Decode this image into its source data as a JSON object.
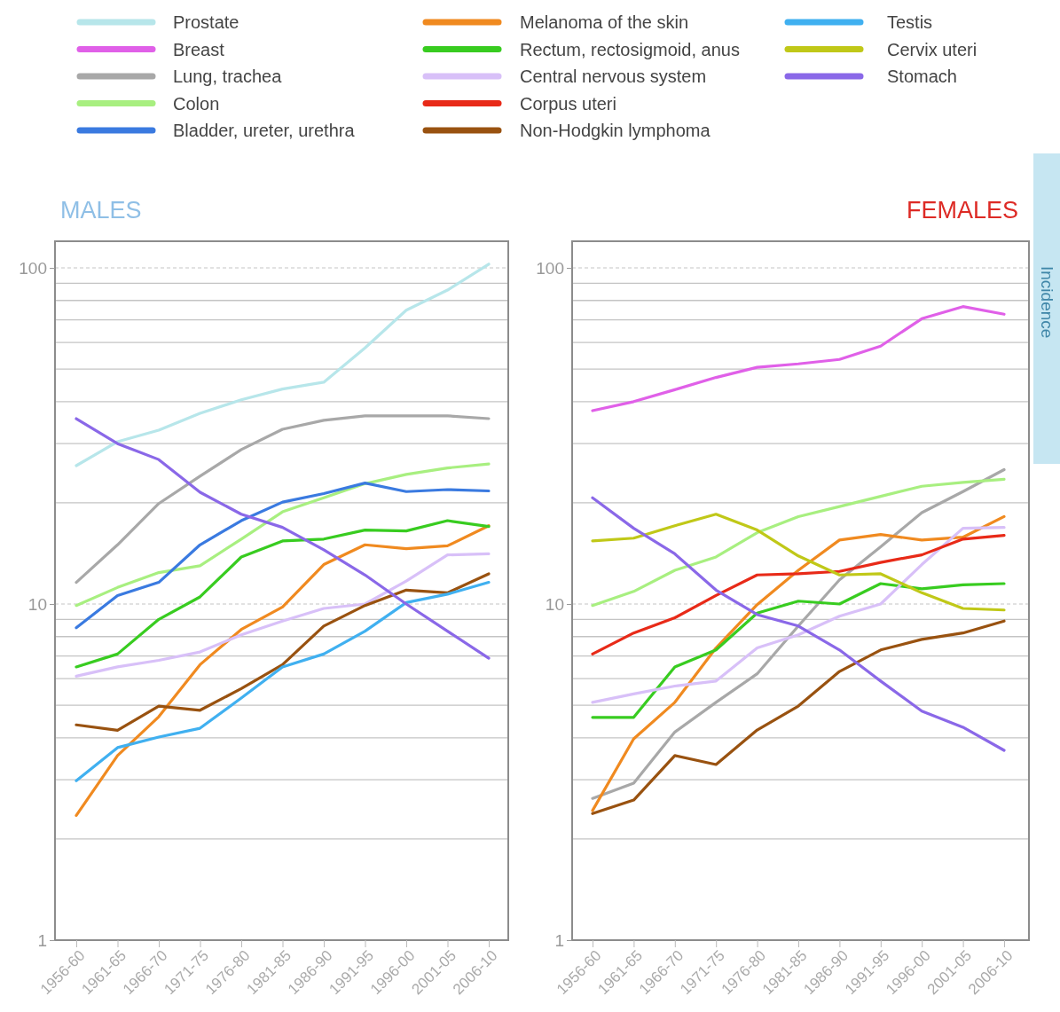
{
  "chart_data": [
    {
      "type": "line",
      "title": "MALES",
      "categories": [
        "1956-60",
        "1961-65",
        "1966-70",
        "1971-75",
        "1976-80",
        "1981-85",
        "1986-90",
        "1991-95",
        "1996-00",
        "2001-05",
        "2006-10"
      ],
      "log": "y",
      "ylim": [
        1,
        120
      ],
      "yticks": [
        1,
        {
          "value": 2,
          "label": null
        },
        {
          "value": 3,
          "label": null
        },
        {
          "value": 4,
          "label": null
        },
        {
          "value": 5,
          "label": null
        },
        {
          "value": 6,
          "label": null
        },
        {
          "value": 7,
          "label": null
        },
        {
          "value": 8,
          "label": null
        },
        {
          "value": 9,
          "label": null
        },
        10,
        {
          "value": 20,
          "label": null
        },
        {
          "value": 30,
          "label": null
        },
        {
          "value": 40,
          "label": null
        },
        {
          "value": 50,
          "label": null
        },
        {
          "value": 60,
          "label": null
        },
        {
          "value": 70,
          "label": null
        },
        {
          "value": 80,
          "label": null
        },
        {
          "value": 90,
          "label": null
        },
        100
      ],
      "grid": "y",
      "legend": "top",
      "marker": "none",
      "line_style": "solid",
      "series": [
        {
          "name": "Prostate",
          "color": "#b7e6ea",
          "values": [
            25.8,
            30.4,
            32.9,
            36.9,
            40.5,
            43.6,
            45.7,
            57.8,
            74.8,
            85.9,
            102.6
          ]
        },
        {
          "name": "Lung, trachea",
          "color": "#a8a8a8",
          "values": [
            11.6,
            15.0,
            19.9,
            24.0,
            28.8,
            33.1,
            35.2,
            36.3,
            36.3,
            36.3,
            35.6
          ]
        },
        {
          "name": "Colon",
          "color": "#a8ef80",
          "values": [
            9.9,
            11.2,
            12.4,
            13.0,
            15.6,
            18.8,
            20.7,
            22.8,
            24.3,
            25.4,
            26.1
          ]
        },
        {
          "name": "Bladder, ureter, urethra",
          "color": "#3a7ae0",
          "values": [
            8.5,
            10.6,
            11.6,
            15.0,
            17.7,
            20.1,
            21.3,
            22.9,
            21.6,
            21.9,
            21.7
          ]
        },
        {
          "name": "Melanoma of the skin",
          "color": "#f08a20",
          "values": [
            2.35,
            3.54,
            4.62,
            6.6,
            8.4,
            9.8,
            13.1,
            15.0,
            14.6,
            14.9,
            17.1
          ]
        },
        {
          "name": "Rectum, rectosigmoid, anus",
          "color": "#38cc20",
          "values": [
            6.5,
            7.1,
            9.0,
            10.5,
            13.8,
            15.4,
            15.6,
            16.6,
            16.5,
            17.7,
            17.0
          ]
        },
        {
          "name": "Central nervous system",
          "color": "#d8c0f8",
          "values": [
            6.1,
            6.5,
            6.8,
            7.2,
            8.1,
            8.9,
            9.7,
            10.0,
            11.7,
            14.0,
            14.1
          ]
        },
        {
          "name": "Non-Hodgkin lymphoma",
          "color": "#995210",
          "values": [
            4.37,
            4.21,
            4.97,
            4.83,
            5.6,
            6.6,
            8.6,
            9.9,
            11.0,
            10.8,
            12.3
          ]
        },
        {
          "name": "Testis",
          "color": "#40b0f0",
          "values": [
            2.98,
            3.74,
            4.02,
            4.27,
            5.25,
            6.5,
            7.1,
            8.3,
            10.1,
            10.7,
            11.6
          ]
        },
        {
          "name": "Stomach",
          "color": "#8a68e8",
          "values": [
            35.6,
            30.0,
            26.9,
            21.5,
            18.5,
            16.9,
            14.5,
            12.2,
            10.0,
            8.3,
            6.9
          ]
        }
      ]
    },
    {
      "type": "line",
      "title": "FEMALES",
      "annotations": [
        "Incidence"
      ],
      "categories": [
        "1956-60",
        "1961-65",
        "1966-70",
        "1971-75",
        "1976-80",
        "1981-85",
        "1986-90",
        "1991-95",
        "1996-00",
        "2001-05",
        "2006-10"
      ],
      "log": "y",
      "ylim": [
        1,
        120
      ],
      "yticks": [
        1,
        {
          "value": 2,
          "label": null
        },
        {
          "value": 3,
          "label": null
        },
        {
          "value": 4,
          "label": null
        },
        {
          "value": 5,
          "label": null
        },
        {
          "value": 6,
          "label": null
        },
        {
          "value": 7,
          "label": null
        },
        {
          "value": 8,
          "label": null
        },
        {
          "value": 9,
          "label": null
        },
        10,
        {
          "value": 20,
          "label": null
        },
        {
          "value": 30,
          "label": null
        },
        {
          "value": 40,
          "label": null
        },
        {
          "value": 50,
          "label": null
        },
        {
          "value": 60,
          "label": null
        },
        {
          "value": 70,
          "label": null
        },
        {
          "value": 80,
          "label": null
        },
        {
          "value": 90,
          "label": null
        },
        100
      ],
      "grid": "y",
      "legend": "top",
      "marker": "none",
      "line_style": "solid",
      "series": [
        {
          "name": "Breast",
          "color": "#e060e8",
          "values": [
            37.6,
            40.0,
            43.4,
            47.2,
            50.6,
            51.8,
            53.4,
            58.5,
            70.6,
            76.7,
            72.8
          ]
        },
        {
          "name": "Lung, trachea",
          "color": "#a8a8a8",
          "values": [
            2.64,
            2.93,
            4.16,
            5.1,
            6.2,
            8.6,
            11.8,
            14.8,
            18.7,
            21.6,
            25.1
          ]
        },
        {
          "name": "Colon",
          "color": "#a8ef80",
          "values": [
            9.9,
            10.9,
            12.6,
            13.8,
            16.3,
            18.2,
            19.5,
            20.9,
            22.4,
            23.0,
            23.5
          ]
        },
        {
          "name": "Melanoma of the skin",
          "color": "#f08a20",
          "values": [
            2.43,
            3.97,
            5.1,
            7.4,
            9.96,
            12.6,
            15.5,
            16.1,
            15.5,
            15.8,
            18.2
          ]
        },
        {
          "name": "Rectum, rectosigmoid, anus",
          "color": "#38cc20",
          "values": [
            4.6,
            4.6,
            6.5,
            7.3,
            9.4,
            10.2,
            10.0,
            11.5,
            11.1,
            11.4,
            11.5
          ]
        },
        {
          "name": "Central nervous system",
          "color": "#d8c0f8",
          "values": [
            5.1,
            5.4,
            5.7,
            5.9,
            7.4,
            8.1,
            9.2,
            10.0,
            13.1,
            16.8,
            16.9
          ]
        },
        {
          "name": "Corpus uteri",
          "color": "#e82a18",
          "values": [
            7.1,
            8.2,
            9.1,
            10.6,
            12.2,
            12.3,
            12.5,
            13.3,
            14.0,
            15.6,
            16.0
          ]
        },
        {
          "name": "Non-Hodgkin lymphoma",
          "color": "#995210",
          "values": [
            2.38,
            2.61,
            3.54,
            3.33,
            4.22,
            4.97,
            6.3,
            7.3,
            7.85,
            8.2,
            8.9
          ]
        },
        {
          "name": "Cervix uteri",
          "color": "#c0c818",
          "values": [
            15.4,
            15.7,
            17.1,
            18.5,
            16.6,
            13.9,
            12.2,
            12.3,
            10.8,
            9.7,
            9.6
          ]
        },
        {
          "name": "Stomach",
          "color": "#8a68e8",
          "values": [
            20.7,
            16.8,
            14.1,
            11.0,
            9.3,
            8.6,
            7.3,
            5.9,
            4.8,
            4.3,
            3.67
          ]
        }
      ]
    }
  ]
}
